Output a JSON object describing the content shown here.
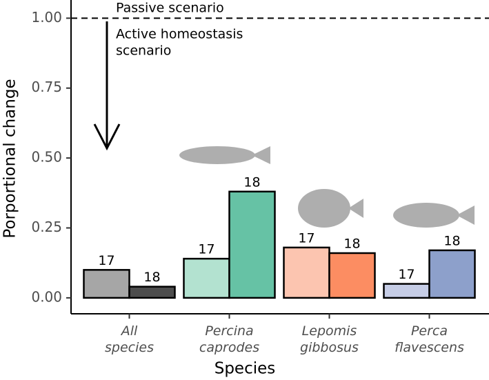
{
  "chart_data": {
    "type": "bar",
    "x_label": "Species",
    "y_label": "Porportional change",
    "categories": [
      "All species",
      "Percina caprodes",
      "Lepomis gibbosus",
      "Perca flavescens"
    ],
    "series": [
      {
        "name": "17",
        "values": [
          0.1,
          0.14,
          0.18,
          0.05
        ],
        "colors": [
          "#a6a6a6",
          "#b3e2d0",
          "#fcc5b0",
          "#c6cde6"
        ]
      },
      {
        "name": "18",
        "values": [
          0.04,
          0.38,
          0.16,
          0.17
        ],
        "colors": [
          "#4d4d4d",
          "#66c2a5",
          "#fc8d62",
          "#8da0cb"
        ]
      }
    ],
    "ylim": [
      -0.057,
      1.065
    ],
    "yticks": [
      {
        "value": 0,
        "label": "0.00"
      },
      {
        "value": 0.25,
        "label": "0.25"
      },
      {
        "value": 0.5,
        "label": "0.50"
      },
      {
        "value": 0.75,
        "label": "0.75"
      },
      {
        "value": 1,
        "label": "1.00"
      }
    ],
    "reference_line": 1,
    "annotations": [
      "Passive scenario",
      "Active homeostasis",
      "scenario"
    ]
  }
}
